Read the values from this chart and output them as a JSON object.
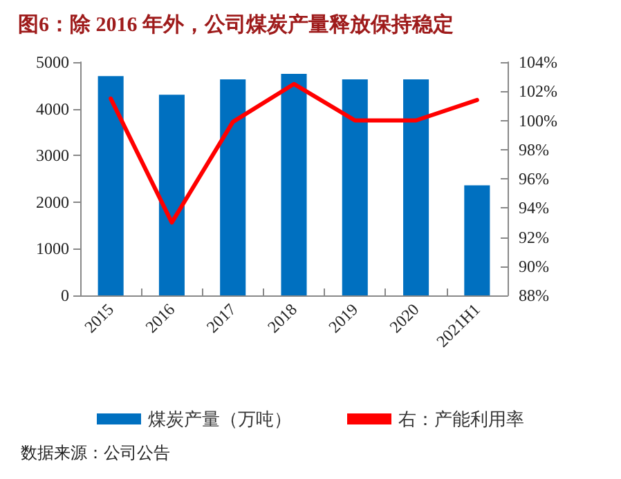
{
  "chart_data": {
    "type": "bar",
    "title": "图6：除 2016 年外，公司煤炭产量释放保持稳定",
    "categories": [
      "2015",
      "2016",
      "2017",
      "2018",
      "2019",
      "2020",
      "2021H1"
    ],
    "series": [
      {
        "name": "煤炭产量（万吨）",
        "color": "#0070c0",
        "values": [
          4700,
          4300,
          4630,
          4750,
          4630,
          4630,
          2360
        ]
      },
      {
        "name": "右：产能利用率",
        "type": "line",
        "axis": "y2",
        "color": "#ff0000",
        "values": [
          101.5,
          93.0,
          99.9,
          102.5,
          100.0,
          100.0,
          101.4
        ]
      }
    ],
    "ylim": [
      0,
      5000
    ],
    "yticks": [
      0,
      1000,
      2000,
      3000,
      4000,
      5000
    ],
    "y2lim": [
      88,
      104
    ],
    "y2ticks": [
      {
        "value": 88,
        "label": "88%"
      },
      {
        "value": 90,
        "label": "90%"
      },
      {
        "value": 92,
        "label": "92%"
      },
      {
        "value": 94,
        "label": "94%"
      },
      {
        "value": 96,
        "label": "96%"
      },
      {
        "value": 98,
        "label": "98%"
      },
      {
        "value": 100,
        "label": "100%"
      },
      {
        "value": 102,
        "label": "102%"
      },
      {
        "value": 104,
        "label": "104%"
      }
    ],
    "grid": false,
    "legend": "bottom",
    "marker": "none",
    "line_style": "solid",
    "annotations": [
      "数据来源：公司公告"
    ]
  }
}
